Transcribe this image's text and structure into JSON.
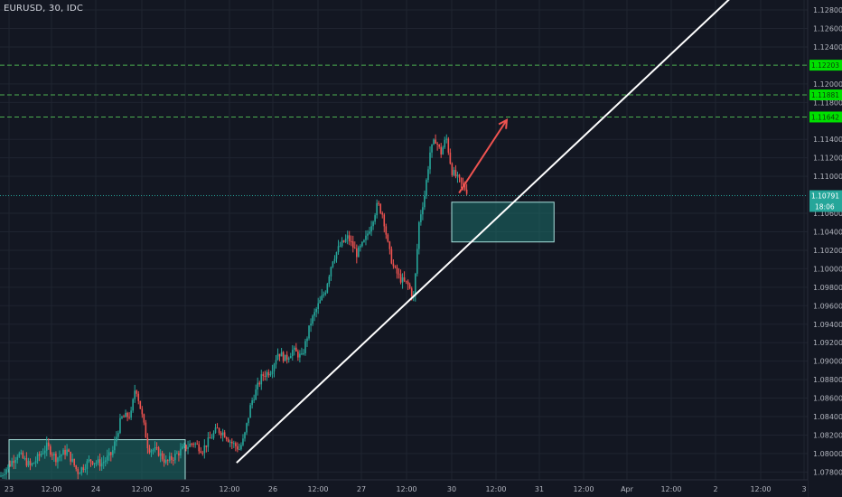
{
  "symbol": "EURUSD, 30, IDC",
  "current_price": "1.10791",
  "countdown": "18:06",
  "colors": {
    "background": "#131722",
    "grid": "#1f2430",
    "axis_text": "#b2b5be",
    "up": "#26a69a",
    "down": "#ef5350",
    "level_line": "#4caf50",
    "level_badge": "#00e000",
    "current_badge": "#26a69a",
    "trendline": "#ffffff",
    "arrow": "#ef5350",
    "zone_fill": "#1b6f6a",
    "zone_border": "#a7e0dc"
  },
  "price_axis": {
    "ticks": [
      "1.12800",
      "1.12600",
      "1.12400",
      "1.12000",
      "1.11800",
      "1.11400",
      "1.11200",
      "1.11000",
      "1.10600",
      "1.10400",
      "1.10200",
      "1.10000",
      "1.09800",
      "1.09600",
      "1.09400",
      "1.09200",
      "1.09000",
      "1.08800",
      "1.08600",
      "1.08400",
      "1.08200",
      "1.08000",
      "1.07800"
    ]
  },
  "time_axis": {
    "ticks": [
      "23",
      "12:00",
      "24",
      "12:00",
      "25",
      "12:00",
      "26",
      "12:00",
      "27",
      "12:00",
      "30",
      "12:00",
      "31",
      "12:00",
      "Apr",
      "12:00",
      "2",
      "12:00",
      "3"
    ]
  },
  "levels": [
    {
      "label": "1.12203",
      "price": 1.12203
    },
    {
      "label": "1.11881",
      "price": 1.11881
    },
    {
      "label": "1.11642",
      "price": 1.11642
    }
  ],
  "chart_data": {
    "type": "candlestick",
    "symbol": "EURUSD",
    "interval": "30",
    "source": "IDC",
    "y_range": [
      1.077,
      1.13
    ],
    "current_price": 1.10791,
    "horizontal_levels": [
      1.12203,
      1.11881,
      1.11642
    ],
    "trendline": {
      "from": {
        "time": "25 14:00",
        "price": 1.079
      },
      "to": {
        "time": "2 06:00",
        "price": 1.13
      }
    },
    "arrow": {
      "from": {
        "time": "30 02:00",
        "price": 1.1082
      },
      "to": {
        "time": "30 15:00",
        "price": 1.1161
      }
    },
    "zones": [
      {
        "time_from": "23 00:00",
        "time_to": "25 00:00",
        "price_low": 1.077,
        "price_high": 1.0815
      },
      {
        "time_from": "30 00:00",
        "time_to": "31 04:00",
        "price_low": 1.1029,
        "price_high": 1.1072
      }
    ],
    "path_points": [
      [
        0,
        1.0775
      ],
      [
        20,
        1.08
      ],
      [
        34,
        1.0786
      ],
      [
        52,
        1.0808
      ],
      [
        62,
        1.0795
      ],
      [
        74,
        1.0803
      ],
      [
        86,
        1.078
      ],
      [
        100,
        1.0793
      ],
      [
        112,
        1.0789
      ],
      [
        124,
        1.08
      ],
      [
        134,
        1.0838
      ],
      [
        145,
        1.0842
      ],
      [
        150,
        1.0874
      ],
      [
        157,
        1.0842
      ],
      [
        164,
        1.0806
      ],
      [
        175,
        1.0802
      ],
      [
        184,
        1.079
      ],
      [
        194,
        1.0798
      ],
      [
        204,
        1.0806
      ],
      [
        214,
        1.0812
      ],
      [
        224,
        1.0804
      ],
      [
        234,
        1.0818
      ],
      [
        240,
        1.0826
      ],
      [
        248,
        1.0822
      ],
      [
        256,
        1.0812
      ],
      [
        265,
        1.0805
      ],
      [
        270,
        1.0816
      ],
      [
        278,
        1.0855
      ],
      [
        290,
        1.0884
      ],
      [
        300,
        1.089
      ],
      [
        308,
        1.091
      ],
      [
        316,
        1.0902
      ],
      [
        324,
        1.0912
      ],
      [
        334,
        1.0904
      ],
      [
        344,
        1.0942
      ],
      [
        352,
        1.096
      ],
      [
        360,
        1.0976
      ],
      [
        368,
        1.101
      ],
      [
        376,
        1.1024
      ],
      [
        385,
        1.1034
      ],
      [
        395,
        1.1016
      ],
      [
        404,
        1.103
      ],
      [
        412,
        1.1052
      ],
      [
        418,
        1.107
      ],
      [
        424,
        1.1058
      ],
      [
        430,
        1.1022
      ],
      [
        436,
        1.1
      ],
      [
        444,
        1.0988
      ],
      [
        452,
        1.0982
      ],
      [
        458,
        1.0968
      ],
      [
        464,
        1.1052
      ],
      [
        470,
        1.108
      ],
      [
        476,
        1.1126
      ],
      [
        482,
        1.114
      ],
      [
        488,
        1.1125
      ],
      [
        494,
        1.1142
      ],
      [
        500,
        1.1106
      ],
      [
        506,
        1.1098
      ],
      [
        512,
        1.109
      ],
      [
        518,
        1.1083
      ]
    ]
  }
}
